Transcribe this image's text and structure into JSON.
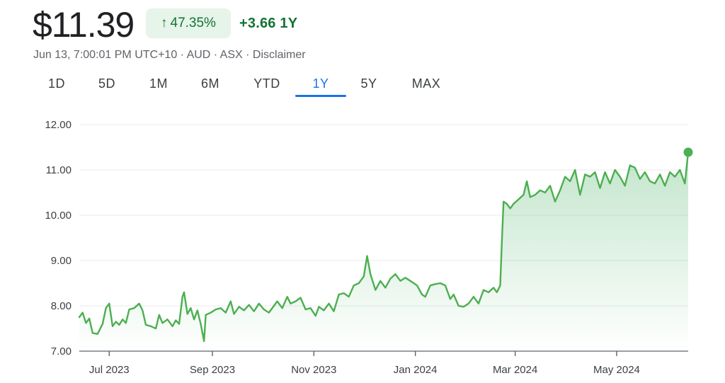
{
  "header": {
    "price": "$11.39",
    "pct_change": "47.35%",
    "pct_arrow": "↑",
    "abs_change": "+3.66",
    "abs_period": "1Y",
    "meta_prefix": "Jun 13, 7:00:01 PM UTC+10 · AUD · ASX · ",
    "disclaimer": "Disclaimer"
  },
  "tabs": [
    {
      "label": "1D",
      "active": false
    },
    {
      "label": "5D",
      "active": false
    },
    {
      "label": "1M",
      "active": false
    },
    {
      "label": "6M",
      "active": false
    },
    {
      "label": "YTD",
      "active": false
    },
    {
      "label": "1Y",
      "active": true
    },
    {
      "label": "5Y",
      "active": false
    },
    {
      "label": "MAX",
      "active": false
    }
  ],
  "colors": {
    "line": "#4caf50",
    "fill": "#34a853",
    "grid": "#e8eaed",
    "axis": "#5f6368",
    "positive": "#137333"
  },
  "chart_data": {
    "type": "area",
    "ylim": [
      7.0,
      12.0
    ],
    "yticks": [
      "12.00",
      "11.00",
      "10.00",
      "9.00",
      "8.00",
      "7.00"
    ],
    "yticks_values": [
      12,
      11,
      10,
      9,
      8,
      7
    ],
    "xticks": [
      "Jul 2023",
      "Sep 2023",
      "Nov 2023",
      "Jan 2024",
      "Mar 2024",
      "May 2024"
    ],
    "xticks_dates": [
      "2023-07-01",
      "2023-09-01",
      "2023-11-01",
      "2024-01-01",
      "2024-03-01",
      "2024-05-01"
    ],
    "xlim": [
      "2023-06-13",
      "2024-06-13"
    ],
    "grid": true,
    "series": [
      {
        "values": [
          [
            "2023-06-13",
            7.75
          ],
          [
            "2023-06-15",
            7.85
          ],
          [
            "2023-06-17",
            7.62
          ],
          [
            "2023-06-19",
            7.72
          ],
          [
            "2023-06-21",
            7.4
          ],
          [
            "2023-06-24",
            7.38
          ],
          [
            "2023-06-27",
            7.6
          ],
          [
            "2023-06-29",
            7.95
          ],
          [
            "2023-07-01",
            8.05
          ],
          [
            "2023-07-03",
            7.55
          ],
          [
            "2023-07-05",
            7.65
          ],
          [
            "2023-07-07",
            7.58
          ],
          [
            "2023-07-09",
            7.7
          ],
          [
            "2023-07-11",
            7.62
          ],
          [
            "2023-07-13",
            7.92
          ],
          [
            "2023-07-16",
            7.95
          ],
          [
            "2023-07-19",
            8.05
          ],
          [
            "2023-07-21",
            7.9
          ],
          [
            "2023-07-23",
            7.58
          ],
          [
            "2023-07-26",
            7.55
          ],
          [
            "2023-07-29",
            7.5
          ],
          [
            "2023-07-31",
            7.8
          ],
          [
            "2023-08-02",
            7.62
          ],
          [
            "2023-08-05",
            7.7
          ],
          [
            "2023-08-08",
            7.55
          ],
          [
            "2023-08-10",
            7.68
          ],
          [
            "2023-08-12",
            7.6
          ],
          [
            "2023-08-14",
            8.2
          ],
          [
            "2023-08-15",
            8.3
          ],
          [
            "2023-08-17",
            7.82
          ],
          [
            "2023-08-19",
            7.95
          ],
          [
            "2023-08-21",
            7.7
          ],
          [
            "2023-08-23",
            7.9
          ],
          [
            "2023-08-25",
            7.6
          ],
          [
            "2023-08-27",
            7.22
          ],
          [
            "2023-08-28",
            7.8
          ],
          [
            "2023-08-31",
            7.85
          ],
          [
            "2023-09-03",
            7.92
          ],
          [
            "2023-09-06",
            7.95
          ],
          [
            "2023-09-09",
            7.85
          ],
          [
            "2023-09-12",
            8.1
          ],
          [
            "2023-09-14",
            7.82
          ],
          [
            "2023-09-17",
            7.98
          ],
          [
            "2023-09-20",
            7.9
          ],
          [
            "2023-09-23",
            8.02
          ],
          [
            "2023-09-26",
            7.88
          ],
          [
            "2023-09-29",
            8.05
          ],
          [
            "2023-10-02",
            7.92
          ],
          [
            "2023-10-05",
            7.85
          ],
          [
            "2023-10-08",
            8.0
          ],
          [
            "2023-10-10",
            8.1
          ],
          [
            "2023-10-13",
            7.95
          ],
          [
            "2023-10-16",
            8.2
          ],
          [
            "2023-10-18",
            8.05
          ],
          [
            "2023-10-21",
            8.1
          ],
          [
            "2023-10-24",
            8.18
          ],
          [
            "2023-10-27",
            7.92
          ],
          [
            "2023-10-30",
            7.95
          ],
          [
            "2023-11-02",
            7.78
          ],
          [
            "2023-11-04",
            7.98
          ],
          [
            "2023-11-07",
            7.9
          ],
          [
            "2023-11-10",
            8.05
          ],
          [
            "2023-11-13",
            7.88
          ],
          [
            "2023-11-16",
            8.25
          ],
          [
            "2023-11-19",
            8.28
          ],
          [
            "2023-11-22",
            8.2
          ],
          [
            "2023-11-25",
            8.45
          ],
          [
            "2023-11-28",
            8.5
          ],
          [
            "2023-12-01",
            8.65
          ],
          [
            "2023-12-03",
            9.1
          ],
          [
            "2023-12-05",
            8.7
          ],
          [
            "2023-12-08",
            8.35
          ],
          [
            "2023-12-11",
            8.55
          ],
          [
            "2023-12-14",
            8.4
          ],
          [
            "2023-12-17",
            8.6
          ],
          [
            "2023-12-20",
            8.7
          ],
          [
            "2023-12-23",
            8.55
          ],
          [
            "2023-12-26",
            8.62
          ],
          [
            "2023-12-29",
            8.55
          ],
          [
            "2024-01-02",
            8.45
          ],
          [
            "2024-01-05",
            8.25
          ],
          [
            "2024-01-07",
            8.2
          ],
          [
            "2024-01-10",
            8.45
          ],
          [
            "2024-01-13",
            8.48
          ],
          [
            "2024-01-16",
            8.5
          ],
          [
            "2024-01-19",
            8.45
          ],
          [
            "2024-01-22",
            8.15
          ],
          [
            "2024-01-24",
            8.25
          ],
          [
            "2024-01-27",
            8.0
          ],
          [
            "2024-01-30",
            7.98
          ],
          [
            "2024-02-02",
            8.05
          ],
          [
            "2024-02-05",
            8.2
          ],
          [
            "2024-02-08",
            8.05
          ],
          [
            "2024-02-11",
            8.35
          ],
          [
            "2024-02-14",
            8.3
          ],
          [
            "2024-02-17",
            8.4
          ],
          [
            "2024-02-19",
            8.3
          ],
          [
            "2024-02-21",
            8.45
          ],
          [
            "2024-02-22",
            9.4
          ],
          [
            "2024-02-23",
            10.3
          ],
          [
            "2024-02-25",
            10.25
          ],
          [
            "2024-02-27",
            10.15
          ],
          [
            "2024-02-29",
            10.25
          ],
          [
            "2024-03-03",
            10.35
          ],
          [
            "2024-03-06",
            10.45
          ],
          [
            "2024-03-08",
            10.75
          ],
          [
            "2024-03-10",
            10.4
          ],
          [
            "2024-03-13",
            10.45
          ],
          [
            "2024-03-16",
            10.55
          ],
          [
            "2024-03-19",
            10.5
          ],
          [
            "2024-03-22",
            10.65
          ],
          [
            "2024-03-25",
            10.3
          ],
          [
            "2024-03-28",
            10.55
          ],
          [
            "2024-03-31",
            10.85
          ],
          [
            "2024-04-03",
            10.75
          ],
          [
            "2024-04-06",
            11.0
          ],
          [
            "2024-04-09",
            10.45
          ],
          [
            "2024-04-12",
            10.9
          ],
          [
            "2024-04-15",
            10.85
          ],
          [
            "2024-04-18",
            10.95
          ],
          [
            "2024-04-21",
            10.6
          ],
          [
            "2024-04-24",
            10.95
          ],
          [
            "2024-04-27",
            10.7
          ],
          [
            "2024-04-30",
            11.0
          ],
          [
            "2024-05-03",
            10.85
          ],
          [
            "2024-05-06",
            10.65
          ],
          [
            "2024-05-09",
            11.1
          ],
          [
            "2024-05-12",
            11.05
          ],
          [
            "2024-05-15",
            10.8
          ],
          [
            "2024-05-18",
            10.95
          ],
          [
            "2024-05-21",
            10.75
          ],
          [
            "2024-05-24",
            10.7
          ],
          [
            "2024-05-27",
            10.9
          ],
          [
            "2024-05-30",
            10.65
          ],
          [
            "2024-06-02",
            10.95
          ],
          [
            "2024-06-05",
            10.85
          ],
          [
            "2024-06-08",
            11.0
          ],
          [
            "2024-06-11",
            10.7
          ],
          [
            "2024-06-13",
            11.39
          ]
        ]
      }
    ]
  }
}
